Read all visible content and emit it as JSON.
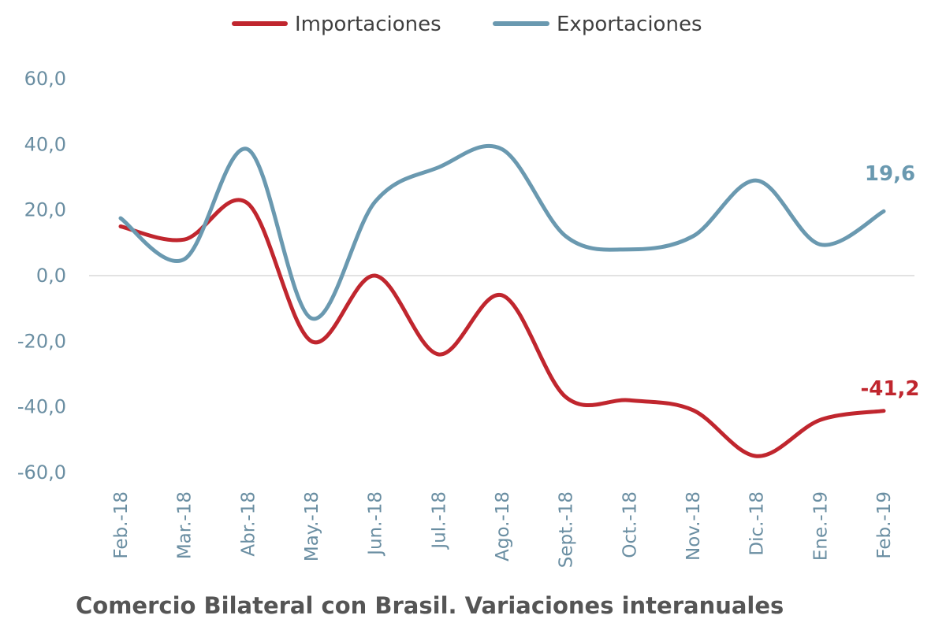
{
  "caption": "Comercio Bilateral con Brasil. Variaciones interanuales",
  "chart_data": {
    "type": "line",
    "smooth": true,
    "categories": [
      "Feb.-18",
      "Mar.-18",
      "Abr.-18",
      "May.-18",
      "Jun.-18",
      "Jul.-18",
      "Ago.-18",
      "Sept.-18",
      "Oct.-18",
      "Nov.-18",
      "Dic.-18",
      "Ene.-19",
      "Feb.-19"
    ],
    "series": [
      {
        "name": "Importaciones",
        "color": "#c0262e",
        "values": [
          15.0,
          11.0,
          22.0,
          -20.0,
          0.0,
          -24.0,
          -6.0,
          -37.0,
          -38.0,
          -41.0,
          -55.0,
          -44.0,
          -41.2
        ],
        "end_label": "-41,2"
      },
      {
        "name": "Exportaciones",
        "color": "#6a99b0",
        "values": [
          17.5,
          5.0,
          38.5,
          -13.0,
          22.5,
          33.0,
          38.5,
          12.0,
          8.0,
          12.0,
          29.0,
          9.5,
          19.6
        ],
        "end_label": "19,6"
      }
    ],
    "y_ticks": [
      "60,0",
      "40,0",
      "20,0",
      "0,0",
      "-20,0",
      "-40,0",
      "-60,0"
    ],
    "ylim": [
      -60,
      60
    ],
    "legend": "top-center",
    "grid": false,
    "zero_line": true
  }
}
